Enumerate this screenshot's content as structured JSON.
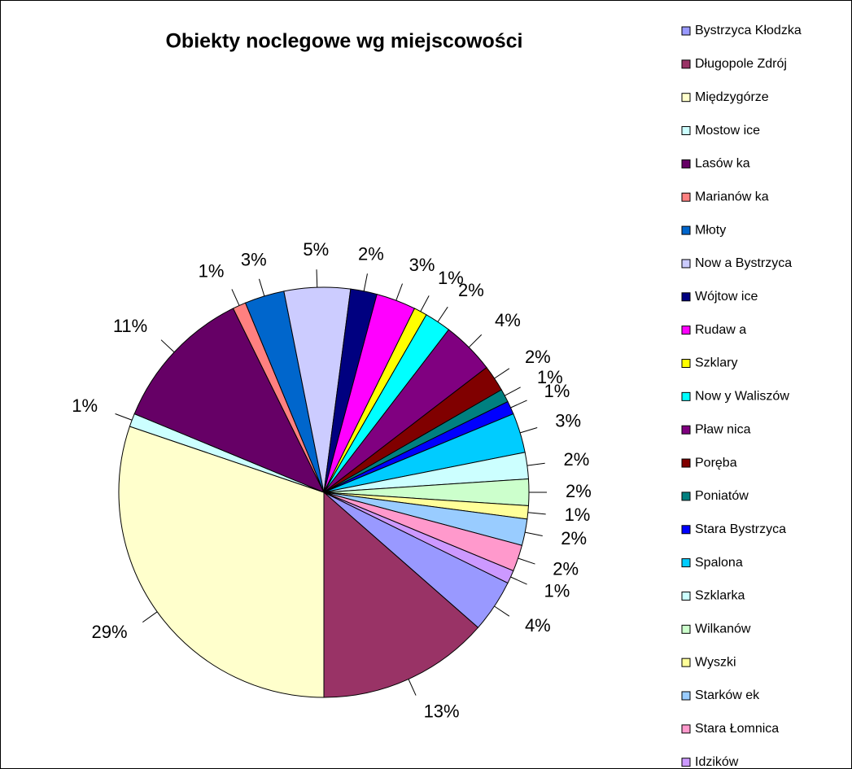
{
  "chart_data": {
    "type": "pie",
    "title": "Obiekty noclegowe wg miejscowości",
    "categories": [
      "Bystrzyca Kłodzka",
      "Długopole Zdrój",
      "Międzygórze",
      "Mostow ice",
      "Lasów ka",
      "Marianów ka",
      "Młoty",
      "Now a Bystrzyca",
      "Wójtow ice",
      "Rudaw a",
      "Szklary",
      "Now y Waliszów",
      "Pław nica",
      "Poręba",
      "Poniatów",
      "Stara Bystrzyca",
      "Spalona",
      "Szklarka",
      "Wilkanów",
      "Wyszki",
      "Starków ek",
      "Stara Łomnica",
      "Idzików"
    ],
    "values": [
      4,
      13,
      29,
      1,
      11,
      1,
      3,
      5,
      2,
      3,
      1,
      2,
      4,
      2,
      1,
      1,
      3,
      2,
      2,
      1,
      2,
      2,
      1
    ],
    "value_labels": [
      "4%",
      "13%",
      "29%",
      "1%",
      "11%",
      "1%",
      "3%",
      "5%",
      "2%",
      "3%",
      "1%",
      "2%",
      "4%",
      "2%",
      "1%",
      "1%",
      "3%",
      "2%",
      "2%",
      "1%",
      "2%",
      "2%",
      "1%"
    ],
    "colors": [
      "#9999FF",
      "#993366",
      "#FFFFCC",
      "#CCFFFF",
      "#660066",
      "#FF8080",
      "#0066CC",
      "#CCCCFF",
      "#000080",
      "#FF00FF",
      "#FFFF00",
      "#00FFFF",
      "#800080",
      "#800000",
      "#008080",
      "#0000FF",
      "#00CCFF",
      "#CCFFFF",
      "#CCFFCC",
      "#FFFF99",
      "#99CCFF",
      "#FF99CC",
      "#CC99FF"
    ],
    "legend": "right"
  }
}
